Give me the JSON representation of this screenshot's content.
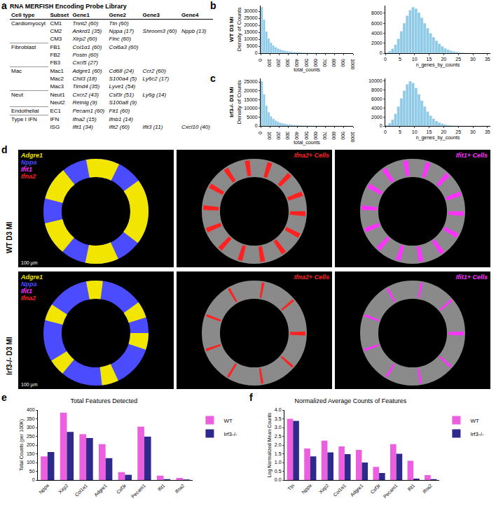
{
  "panel_labels": [
    "a",
    "b",
    "c",
    "d",
    "e",
    "f"
  ],
  "table": {
    "title": "RNA MERFISH Encoding Probe Library",
    "header": [
      "Cell type",
      "Subset",
      "Gene1",
      "Gene2",
      "Gene3",
      "Gene4"
    ],
    "rows": [
      [
        "Cardiomyocyt",
        "CM1",
        "Tnnt2 (60)",
        "Ttn (60)",
        null,
        null
      ],
      [
        null,
        "CM2",
        "Ankrd1 (35)",
        "Nppa (17)",
        "Shroom3 (60)",
        "Nppb (13)"
      ],
      [
        null,
        "CM3",
        "Xirp2 (60)",
        "Flnc (60)",
        null,
        null
      ],
      [
        "Fibroblast",
        "FB1",
        "Col1α1 (60)",
        "Col6a3 (60)",
        null,
        null
      ],
      [
        null,
        "FB2",
        "Postn (60)",
        null,
        null,
        null
      ],
      [
        null,
        "FB3",
        "Cxcl5 (27)",
        null,
        null,
        null
      ],
      [
        "Mac",
        "Mac1",
        "Adgre1 (60)",
        "Cd68 (24)",
        "Ccr2 (60)",
        null
      ],
      [
        null,
        "Mac2",
        "Chil3 (18)",
        "S100a4 (5)",
        "Ly6c2 (17)",
        null
      ],
      [
        null,
        "Mac3",
        "Timd4 (35)",
        "Lyve1 (54)",
        null,
        null
      ],
      [
        "Neut",
        "Neut1",
        "Cxcr2 (43)",
        "Csf3r (51)",
        "Ly6g (14)",
        null
      ],
      [
        null,
        "Neut2",
        "Retnlg (9)",
        "S100a8 (9)",
        null,
        null
      ],
      [
        "Endothelial",
        "EC1",
        "Pecam1 (60)",
        "Flt1 (60)",
        null,
        null
      ],
      [
        "Type I IFN",
        "IFN",
        "Ifna2 (15)",
        "Ifnb1 (14)",
        null,
        null
      ],
      [
        null,
        "ISG",
        "Ifit1 (34)",
        "Ifit2 (60)",
        "Ifit3 (11)",
        "Cxcl10 (40)"
      ]
    ]
  },
  "images": {
    "rows": [
      "WT D3 MI",
      "Irf3-/- D3 MI"
    ],
    "legend": [
      {
        "gene": "Adgre1",
        "color": "#f2e600"
      },
      {
        "gene": "Nppa",
        "color": "#4b4bff"
      },
      {
        "gene": "Ifit1",
        "color": "#ff33ff"
      },
      {
        "gene": "Ifna2",
        "color": "#ff2020"
      }
    ],
    "column_titles": [
      {
        "text": "Ifna2+ Cells",
        "color": "#ff2020"
      },
      {
        "text": "Ifit1+ Cells",
        "color": "#ff33ff"
      }
    ],
    "scale_bar": "100 µm"
  },
  "chart_data": [
    {
      "type": "histogram",
      "row_label": "WT D3 MI",
      "ylabel": "Density of Counts",
      "xlabel": "total_counts",
      "color": "#8fcbe6",
      "bins": [
        0,
        25,
        50,
        75,
        100,
        125,
        150,
        175,
        200,
        225,
        250,
        275,
        300,
        325,
        350,
        375,
        400,
        425,
        450,
        475,
        500,
        525,
        550,
        575,
        600,
        625,
        650,
        675,
        700,
        725,
        750,
        775,
        800,
        825,
        850,
        875,
        900,
        925,
        950,
        975,
        1000
      ],
      "counts": [
        33000,
        24000,
        15500,
        10500,
        7500,
        5600,
        4300,
        3400,
        2700,
        2200,
        1800,
        1500,
        1250,
        1050,
        900,
        760,
        650,
        560,
        480,
        420,
        360,
        310,
        270,
        240,
        210,
        185,
        160,
        140,
        125,
        110,
        95,
        85,
        75,
        65,
        58,
        50,
        44,
        38,
        33,
        28
      ],
      "xlim": [
        0,
        1000
      ],
      "xticks": [
        0,
        100,
        200,
        300,
        400,
        500,
        600,
        700,
        800,
        900,
        1000
      ],
      "ylim": [
        0,
        34000
      ],
      "yticks": [
        0,
        5000,
        10000,
        15000,
        20000,
        25000,
        30000
      ]
    },
    {
      "type": "histogram",
      "xlabel": "n_genes_by_counts",
      "color": "#8fcbe6",
      "bins": [
        0,
        1,
        2,
        3,
        4,
        5,
        6,
        7,
        8,
        9,
        10,
        11,
        12,
        13,
        14,
        15,
        16,
        17,
        18,
        19,
        20,
        21,
        22,
        23,
        24,
        25,
        26,
        27,
        28,
        29,
        30,
        31,
        32,
        33,
        34,
        35,
        36
      ],
      "counts": [
        150,
        400,
        900,
        1700,
        2900,
        4400,
        6000,
        7500,
        8600,
        9200,
        8900,
        8100,
        7100,
        6000,
        5000,
        4000,
        3200,
        2500,
        1900,
        1400,
        1000,
        720,
        510,
        360,
        250,
        170,
        115,
        78,
        52,
        34,
        22,
        14,
        9,
        6,
        4,
        2
      ],
      "xlim": [
        0,
        36
      ],
      "xticks": [
        0,
        5,
        10,
        15,
        20,
        25,
        30,
        35
      ],
      "ylim": [
        0,
        9500
      ],
      "yticks": [
        0,
        2000,
        4000,
        6000,
        8000
      ]
    },
    {
      "type": "histogram",
      "row_label": "Irf3-/- D3 MI",
      "ylabel": "Density of Counts",
      "xlabel": "total_counts",
      "color": "#8fcbe6",
      "bins": [
        0,
        25,
        50,
        75,
        100,
        125,
        150,
        175,
        200,
        225,
        250,
        275,
        300,
        325,
        350,
        375,
        400,
        425,
        450,
        475,
        500,
        525,
        550,
        575,
        600,
        625,
        650,
        675,
        700,
        725,
        750,
        775,
        800,
        825,
        850,
        875,
        900,
        925,
        950,
        975,
        1000
      ],
      "counts": [
        25500,
        18000,
        11500,
        7800,
        5500,
        4100,
        3100,
        2400,
        1900,
        1550,
        1250,
        1000,
        830,
        690,
        580,
        490,
        410,
        350,
        300,
        260,
        220,
        190,
        165,
        145,
        125,
        110,
        95,
        82,
        72,
        63,
        55,
        48,
        42,
        36,
        31,
        27,
        23,
        20,
        17,
        15
      ],
      "xlim": [
        0,
        1000
      ],
      "xticks": [
        0,
        100,
        200,
        300,
        400,
        500,
        600,
        700,
        800,
        900,
        1000
      ],
      "ylim": [
        0,
        27000
      ],
      "yticks": [
        0,
        5000,
        10000,
        15000,
        20000,
        25000
      ]
    },
    {
      "type": "histogram",
      "xlabel": "n_genes_by_counts",
      "color": "#8fcbe6",
      "bins": [
        0,
        1,
        2,
        3,
        4,
        5,
        6,
        7,
        8,
        9,
        10,
        11,
        12,
        13,
        14,
        15,
        16,
        17,
        18,
        19,
        20,
        21,
        22,
        23,
        24,
        25,
        26,
        27,
        28,
        29,
        30,
        31,
        32,
        33,
        34,
        35,
        36
      ],
      "counts": [
        200,
        600,
        1400,
        2700,
        4300,
        6100,
        7800,
        9200,
        9900,
        9500,
        8400,
        7000,
        5600,
        4300,
        3200,
        2300,
        1600,
        1100,
        750,
        500,
        330,
        215,
        140,
        90,
        58,
        37,
        24,
        15,
        10,
        6,
        4,
        2,
        1,
        1,
        0,
        0
      ],
      "xlim": [
        0,
        36
      ],
      "xticks": [
        0,
        5,
        10,
        15,
        20,
        25,
        30,
        35
      ],
      "ylim": [
        0,
        10500
      ],
      "yticks": [
        0,
        2000,
        4000,
        6000,
        8000,
        10000
      ]
    },
    {
      "type": "bar",
      "title": "Total Features Detected",
      "ylabel": "Total Counts (per 100K)",
      "legend": "upper right",
      "categories": [
        "Nppa",
        "Xirp2",
        "Col1α1",
        "Adgre1",
        "Csf3r",
        "Pecam1",
        "Ifit1",
        "Ifna2"
      ],
      "series": [
        {
          "name": "WT",
          "color": "#ec5fde",
          "values": [
            135,
            385,
            262,
            205,
            45,
            305,
            25,
            12
          ]
        },
        {
          "name": "Irf3-/-",
          "color": "#2e2a8c",
          "values": [
            160,
            275,
            240,
            125,
            30,
            248,
            5,
            3
          ]
        }
      ],
      "ylim": [
        0,
        400
      ],
      "yticks": [
        0,
        50,
        100,
        150,
        200,
        250,
        300,
        350,
        400
      ]
    },
    {
      "type": "bar",
      "title": "Normalized Average Counts of Features",
      "ylabel": "Log Normalized Mean Counts",
      "legend": "upper right",
      "categories": [
        "Ttn",
        "Nppa",
        "Xirp2",
        "Col1α1",
        "Adgre1",
        "Csf3r",
        "Pecam1",
        "Ifit1",
        "Ifna2"
      ],
      "series": [
        {
          "name": "WT",
          "color": "#ec5fde",
          "values": [
            3.5,
            1.8,
            2.25,
            1.92,
            1.72,
            0.75,
            2.05,
            1.1,
            0.28
          ]
        },
        {
          "name": "Irf3-/-",
          "color": "#2e2a8c",
          "values": [
            3.38,
            1.35,
            1.58,
            1.48,
            1.0,
            0.4,
            1.5,
            0.08,
            0.05
          ]
        }
      ],
      "ylim": [
        0,
        4.0
      ],
      "yticks": [
        {
          "value": 0,
          "label": "0.0"
        },
        {
          "value": 0.5,
          "label": "0.5"
        },
        {
          "value": 1,
          "label": "1.0"
        },
        {
          "value": 1.5,
          "label": "1.5"
        },
        {
          "value": 2,
          "label": "2.0"
        },
        {
          "value": 2.5,
          "label": "2.5"
        },
        {
          "value": 3,
          "label": "3.0"
        },
        {
          "value": 3.5,
          "label": "3.5"
        },
        {
          "value": 4,
          "label": "4.0"
        }
      ]
    }
  ]
}
